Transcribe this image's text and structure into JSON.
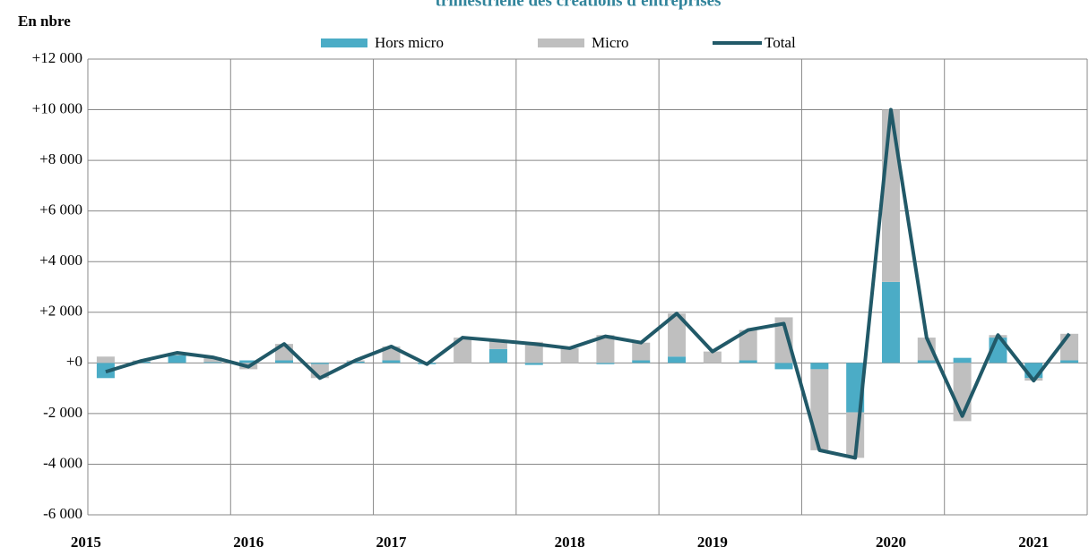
{
  "chart_data": {
    "type": "stacked_bar_line",
    "title": "trimestrielle des créations d'entreprises",
    "y_axis_label": "En nbre",
    "categories": [
      "2015",
      null,
      null,
      null,
      "2016",
      null,
      null,
      null,
      "2017",
      null,
      null,
      null,
      null,
      "2018",
      null,
      null,
      null,
      "2019",
      null,
      null,
      null,
      null,
      "2020",
      null,
      null,
      null,
      "2021",
      null
    ],
    "series": [
      {
        "name": "Hors micro",
        "color": "#4bacc6",
        "kind": "bar",
        "values": [
          -600,
          50,
          300,
          30,
          100,
          100,
          -50,
          50,
          100,
          -50,
          0,
          550,
          -80,
          0,
          -50,
          100,
          250,
          0,
          100,
          -250,
          -250,
          -1950,
          3200,
          100,
          200,
          1000,
          -600,
          100
        ]
      },
      {
        "name": "Micro",
        "color": "#bfbfbf",
        "kind": "bar",
        "values": [
          250,
          50,
          100,
          200,
          -250,
          650,
          -550,
          50,
          550,
          0,
          1000,
          300,
          830,
          580,
          1100,
          700,
          1700,
          450,
          1200,
          1800,
          -3200,
          -1800,
          6800,
          900,
          -2300,
          100,
          -100,
          1050
        ]
      },
      {
        "name": "Total",
        "color": "#215968",
        "kind": "line",
        "values": [
          -350,
          80,
          400,
          220,
          -150,
          750,
          -600,
          100,
          650,
          -50,
          1000,
          880,
          750,
          580,
          1050,
          800,
          1950,
          450,
          1300,
          1550,
          -3450,
          -3750,
          10000,
          1000,
          -2100,
          1100,
          -700,
          1150
        ]
      }
    ],
    "ylim": [
      -6000,
      12000
    ],
    "yticks": [
      {
        "value": -6000,
        "label": "-6 000"
      },
      {
        "value": -4000,
        "label": "-4 000"
      },
      {
        "value": -2000,
        "label": "-2 000"
      },
      {
        "value": 0,
        "label": "+0"
      },
      {
        "value": 2000,
        "label": "+2 000"
      },
      {
        "value": 4000,
        "label": "+4 000"
      },
      {
        "value": 6000,
        "label": "+6 000"
      },
      {
        "value": 8000,
        "label": "+8 000"
      },
      {
        "value": 10000,
        "label": "+10 000"
      },
      {
        "value": 12000,
        "label": "+12 000"
      }
    ],
    "grid": true
  }
}
